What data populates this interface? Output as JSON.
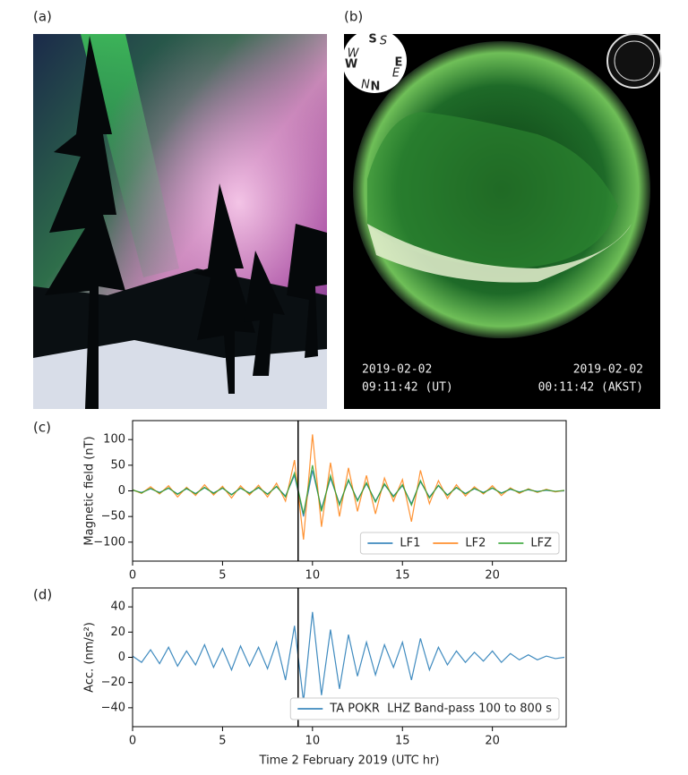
{
  "panels": {
    "a": {
      "label": "(a)"
    },
    "b": {
      "label": "(b)",
      "compass": [
        "S",
        "S",
        "W",
        "W",
        "E",
        "E",
        "N",
        "N"
      ],
      "left_date": "2019-02-02",
      "left_time": "09:11:42 (UT)",
      "right_date": "2019-02-02",
      "right_time": "00:11:42 (AKST)"
    }
  },
  "chart_data": [
    {
      "type": "line",
      "panel_label": "(c)",
      "y_label": "Magnetic field (nT)",
      "x": [
        0,
        0.5,
        1,
        1.5,
        2,
        2.5,
        3,
        3.5,
        4,
        4.5,
        5,
        5.5,
        6,
        6.5,
        7,
        7.5,
        8,
        8.5,
        9,
        9.5,
        10,
        10.5,
        11,
        11.5,
        12,
        12.5,
        13,
        13.5,
        14,
        14.5,
        15,
        15.5,
        16,
        16.5,
        17,
        17.5,
        18,
        18.5,
        19,
        19.5,
        20,
        20.5,
        21,
        21.5,
        22,
        22.5,
        23,
        23.5,
        24
      ],
      "series": [
        {
          "name": "LF1",
          "color": "#1f77b4",
          "values": [
            1,
            -3,
            4,
            -3,
            5,
            -6,
            4,
            -5,
            6,
            -4,
            5,
            -7,
            5,
            -4,
            6,
            -6,
            8,
            -10,
            30,
            -50,
            40,
            -35,
            25,
            -25,
            20,
            -18,
            14,
            -20,
            12,
            -10,
            10,
            -25,
            18,
            -12,
            10,
            -8,
            6,
            -5,
            4,
            -3,
            5,
            -4,
            3,
            -2,
            2,
            -1,
            1,
            -1,
            0
          ]
        },
        {
          "name": "LF2",
          "color": "#ff7f0e",
          "values": [
            2,
            -5,
            8,
            -6,
            10,
            -12,
            7,
            -9,
            12,
            -8,
            9,
            -14,
            10,
            -8,
            11,
            -12,
            15,
            -20,
            60,
            -95,
            110,
            -70,
            55,
            -50,
            45,
            -40,
            30,
            -45,
            25,
            -20,
            22,
            -60,
            40,
            -25,
            20,
            -15,
            12,
            -10,
            8,
            -6,
            10,
            -9,
            6,
            -5,
            4,
            -3,
            3,
            -2,
            1
          ]
        },
        {
          "name": "LFZ",
          "color": "#2ca02c",
          "values": [
            2,
            -4,
            5,
            -4,
            6,
            -7,
            5,
            -6,
            7,
            -5,
            6,
            -8,
            6,
            -5,
            7,
            -7,
            9,
            -12,
            35,
            -45,
            50,
            -40,
            30,
            -28,
            22,
            -20,
            16,
            -22,
            14,
            -12,
            12,
            -28,
            20,
            -14,
            11,
            -9,
            7,
            -6,
            5,
            -4,
            6,
            -5,
            4,
            -3,
            3,
            -2,
            2,
            -1,
            1
          ]
        }
      ],
      "marker_x": 9.2,
      "xlim": [
        0,
        24.1
      ],
      "xticks": [
        0,
        5,
        10,
        15,
        20
      ],
      "ylim": [
        -137,
        137
      ],
      "yticks": [
        {
          "value": -100,
          "label": "−100"
        },
        {
          "value": -50,
          "label": "−50"
        },
        0,
        50,
        100
      ],
      "legend": "lower right"
    },
    {
      "type": "line",
      "panel_label": "(d)",
      "y_label": "Acc. (nm/s²)",
      "x_label": "Time 2 February 2019 (UTC hr)",
      "x": [
        0,
        0.5,
        1,
        1.5,
        2,
        2.5,
        3,
        3.5,
        4,
        4.5,
        5,
        5.5,
        6,
        6.5,
        7,
        7.5,
        8,
        8.5,
        9,
        9.5,
        10,
        10.5,
        11,
        11.5,
        12,
        12.5,
        13,
        13.5,
        14,
        14.5,
        15,
        15.5,
        16,
        16.5,
        17,
        17.5,
        18,
        18.5,
        19,
        19.5,
        20,
        20.5,
        21,
        21.5,
        22,
        22.5,
        23,
        23.5,
        24
      ],
      "series": [
        {
          "name": "TA POKR  LHZ Band-pass 100 to 800 s",
          "color": "#1f77b4",
          "values": [
            1,
            -4,
            6,
            -5,
            8,
            -7,
            5,
            -6,
            10,
            -8,
            7,
            -10,
            9,
            -7,
            8,
            -9,
            12,
            -18,
            25,
            -35,
            36,
            -30,
            22,
            -25,
            18,
            -15,
            12,
            -14,
            10,
            -8,
            12,
            -18,
            15,
            -10,
            8,
            -6,
            5,
            -4,
            4,
            -3,
            5,
            -4,
            3,
            -2,
            2,
            -2,
            1,
            -1,
            0
          ]
        }
      ],
      "marker_x": 9.2,
      "xlim": [
        0,
        24.1
      ],
      "xticks": [
        0,
        5,
        10,
        15,
        20
      ],
      "ylim": [
        -55,
        55
      ],
      "yticks": [
        {
          "value": -40,
          "label": "−40"
        },
        {
          "value": -20,
          "label": "−20"
        },
        0,
        20,
        40
      ],
      "legend": "lower right"
    }
  ]
}
